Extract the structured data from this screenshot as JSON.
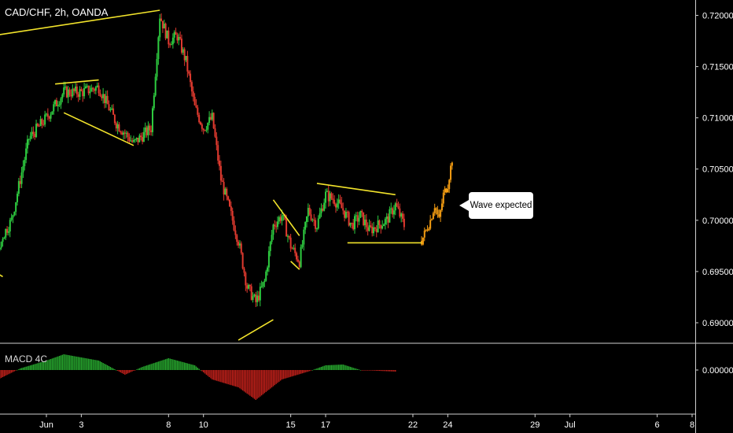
{
  "header": {
    "symbol_label": "CAD/CHF, 2h, OANDA"
  },
  "macd": {
    "title": "MACD 4C"
  },
  "callout": {
    "text": "Wave expected"
  },
  "colors": {
    "background": "#000000",
    "bull": "#2ecc40",
    "bear": "#e03a2f",
    "macd_pos": "#27a82e",
    "macd_neg": "#c0201a",
    "projection": "#f39c12",
    "trendline": "#f2e32b",
    "axis_text": "#ffffff"
  },
  "chart_data": {
    "type": "candlestick",
    "instrument": "CAD/CHF",
    "timeframe": "2h",
    "source": "OANDA",
    "ylim": [
      0.688,
      0.7215
    ],
    "y_ticks": [
      "0.72000",
      "0.71500",
      "0.71000",
      "0.70500",
      "0.70000",
      "0.69500",
      "0.69000"
    ],
    "y_tick_values": [
      0.72,
      0.715,
      0.71,
      0.705,
      0.7,
      0.695,
      0.69
    ],
    "x_ticks": [
      "Jun",
      "3",
      "8",
      "10",
      "15",
      "17",
      "22",
      "24",
      "29",
      "Jul",
      "6",
      "8"
    ],
    "x_tick_dates": [
      "2020-06-01",
      "2020-06-03",
      "2020-06-08",
      "2020-06-10",
      "2020-06-15",
      "2020-06-17",
      "2020-06-22",
      "2020-06-24",
      "2020-06-29",
      "2020-07-01",
      "2020-07-06",
      "2020-07-08"
    ],
    "x_range": [
      "2020-05-26",
      "2020-07-08"
    ],
    "price_path": [
      [
        "2020-05-26",
        0.705
      ],
      [
        "2020-05-26T12",
        0.704
      ],
      [
        "2020-05-27",
        0.701
      ],
      [
        "2020-05-27T12",
        0.6985
      ],
      [
        "2020-05-28",
        0.701
      ],
      [
        "2020-05-28T12",
        0.696
      ],
      [
        "2020-05-29",
        0.695
      ],
      [
        "2020-05-29T12",
        0.6985
      ],
      [
        "2020-05-30",
        0.7
      ],
      [
        "2020-05-31",
        0.708
      ],
      [
        "2020-06-01",
        0.71
      ],
      [
        "2020-06-02",
        0.7125
      ],
      [
        "2020-06-03",
        0.7125
      ],
      [
        "2020-06-04",
        0.713
      ],
      [
        "2020-06-05",
        0.7095
      ],
      [
        "2020-06-06",
        0.7075
      ],
      [
        "2020-06-07",
        0.709
      ],
      [
        "2020-06-07T12",
        0.72
      ],
      [
        "2020-06-08",
        0.7175
      ],
      [
        "2020-06-08T12",
        0.718
      ],
      [
        "2020-06-09",
        0.7155
      ],
      [
        "2020-06-09T12",
        0.711
      ],
      [
        "2020-06-10",
        0.709
      ],
      [
        "2020-06-10T12",
        0.71
      ],
      [
        "2020-06-11",
        0.704
      ],
      [
        "2020-06-11T12",
        0.701
      ],
      [
        "2020-06-12",
        0.698
      ],
      [
        "2020-06-12T12",
        0.6935
      ],
      [
        "2020-06-13",
        0.692
      ],
      [
        "2020-06-13T12",
        0.694
      ],
      [
        "2020-06-14",
        0.6995
      ],
      [
        "2020-06-14T12",
        0.7005
      ],
      [
        "2020-06-15",
        0.6975
      ],
      [
        "2020-06-15T12",
        0.696
      ],
      [
        "2020-06-16",
        0.701
      ],
      [
        "2020-06-16T12",
        0.6995
      ],
      [
        "2020-06-17",
        0.7025
      ],
      [
        "2020-06-17T12",
        0.702
      ],
      [
        "2020-06-18",
        0.701
      ],
      [
        "2020-06-18T12",
        0.6995
      ],
      [
        "2020-06-19",
        0.7005
      ],
      [
        "2020-06-19T12",
        0.699
      ],
      [
        "2020-06-20",
        0.6995
      ],
      [
        "2020-06-20T12",
        0.7
      ],
      [
        "2020-06-21",
        0.7015
      ],
      [
        "2020-06-21T12",
        0.6995
      ]
    ],
    "projection": [
      [
        "2020-06-22T12",
        0.698
      ],
      [
        "2020-06-23",
        0.7
      ],
      [
        "2020-06-23T06",
        0.7015
      ],
      [
        "2020-06-23T12",
        0.7
      ],
      [
        "2020-06-23T18",
        0.7025
      ],
      [
        "2020-06-24",
        0.7035
      ],
      [
        "2020-06-24T06",
        0.706
      ]
    ],
    "trendlines": [
      {
        "points": [
          [
            "2020-05-25",
            0.717
          ],
          [
            "2020-06-07T12",
            0.7205
          ]
        ]
      },
      {
        "points": [
          [
            "2020-05-25",
            0.706
          ],
          [
            "2020-05-25T12",
            0.705
          ]
        ]
      },
      {
        "points": [
          [
            "2020-05-25",
            0.699
          ],
          [
            "2020-05-29T12",
            0.6945
          ]
        ]
      },
      {
        "points": [
          [
            "2020-06-01T12",
            0.7133
          ],
          [
            "2020-06-04",
            0.7137
          ]
        ]
      },
      {
        "points": [
          [
            "2020-06-02",
            0.7105
          ],
          [
            "2020-06-06",
            0.7073
          ]
        ]
      },
      {
        "points": [
          [
            "2020-06-12",
            0.6883
          ],
          [
            "2020-06-14",
            0.6903
          ]
        ]
      },
      {
        "points": [
          [
            "2020-06-14",
            0.702
          ],
          [
            "2020-06-15T12",
            0.6985
          ]
        ]
      },
      {
        "points": [
          [
            "2020-06-15",
            0.696
          ],
          [
            "2020-06-15T12",
            0.6952
          ]
        ]
      },
      {
        "points": [
          [
            "2020-06-16T12",
            0.7036
          ],
          [
            "2020-06-21",
            0.7025
          ]
        ]
      },
      {
        "points": [
          [
            "2020-06-18T06",
            0.6978
          ],
          [
            "2020-06-22T12",
            0.6978
          ]
        ]
      }
    ],
    "macd_panel": {
      "title": "MACD 4C",
      "y_ticks": [
        "0.00000"
      ],
      "shape": [
        [
          "2020-05-26",
          -0.3
        ],
        [
          "2020-05-28T12",
          -1.0
        ],
        [
          "2020-05-30T12",
          0.1
        ],
        [
          "2020-06-01",
          0.6
        ],
        [
          "2020-06-02",
          1.0
        ],
        [
          "2020-06-04",
          0.6
        ],
        [
          "2020-06-05T12",
          -0.3
        ],
        [
          "2020-06-06T12",
          0.2
        ],
        [
          "2020-06-08",
          0.75
        ],
        [
          "2020-06-09T12",
          0.3
        ],
        [
          "2020-06-10T12",
          -0.6
        ],
        [
          "2020-06-12",
          -1.1
        ],
        [
          "2020-06-13",
          -1.9
        ],
        [
          "2020-06-14T12",
          -0.6
        ],
        [
          "2020-06-16",
          -0.1
        ],
        [
          "2020-06-17",
          0.3
        ],
        [
          "2020-06-18",
          0.35
        ],
        [
          "2020-06-19",
          0.0
        ],
        [
          "2020-06-21",
          -0.1
        ]
      ]
    }
  }
}
